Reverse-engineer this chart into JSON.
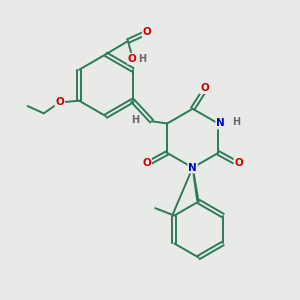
{
  "bg_color": "#e8eae8",
  "bond_color": "#2d7a5a",
  "atom_colors": {
    "O": "#cc0000",
    "N": "#0000cc",
    "H": "#666666",
    "C": "#2d7a5a"
  }
}
